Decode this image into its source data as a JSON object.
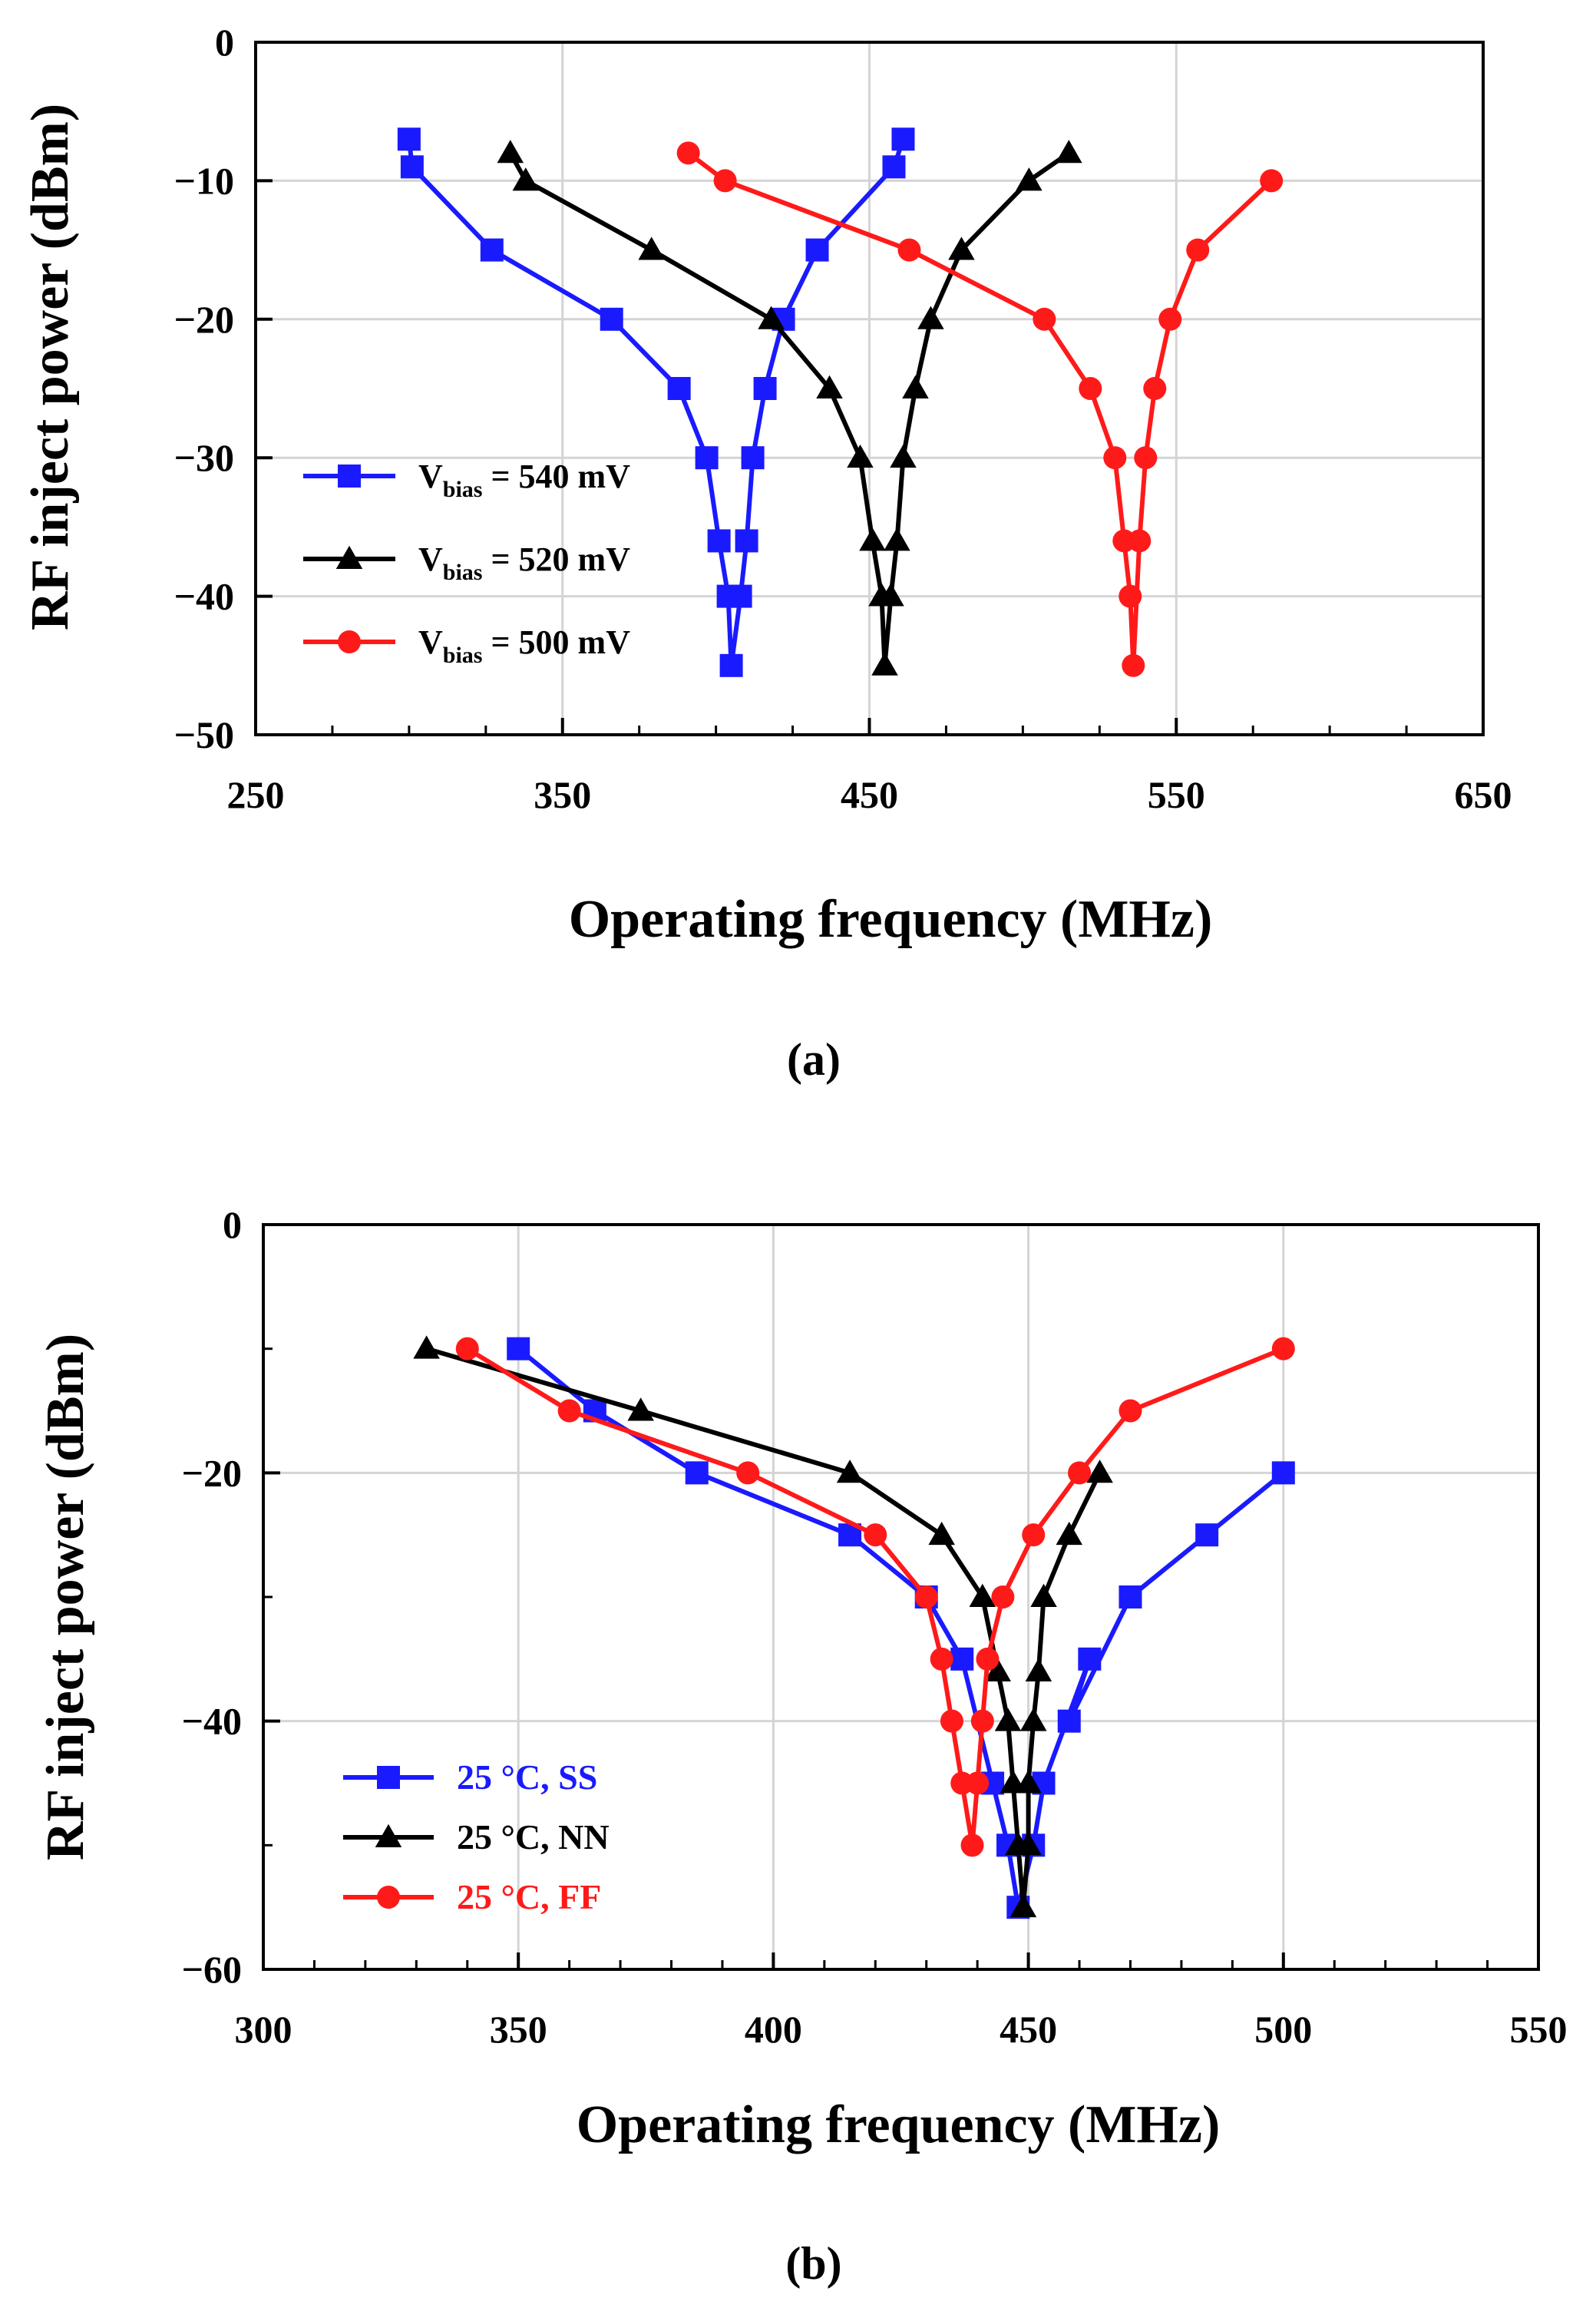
{
  "chart_data": [
    {
      "id": "a",
      "type": "line",
      "caption": "(a)",
      "xlabel": "Operating frequency (MHz)",
      "ylabel": "RF inject power (dBm)",
      "xlim": [
        250,
        650
      ],
      "ylim": [
        -50,
        0
      ],
      "xticks": [
        250,
        350,
        450,
        550,
        650
      ],
      "xticks_minor": [
        275,
        300,
        325,
        375,
        400,
        425,
        475,
        500,
        525,
        575,
        600,
        625
      ],
      "yticks": [
        0,
        -10,
        -20,
        -30,
        -40,
        -50
      ],
      "xgrid": [
        350,
        450,
        550
      ],
      "ygrid": [
        -10,
        -20,
        -30,
        -40
      ],
      "legend": "center-left",
      "series": [
        {
          "legend_main": "V",
          "legend_sub": "bias",
          "legend_rest": " = 540 mV",
          "color": "#1a1aff",
          "marker": "square",
          "points": [
            [
              300,
              -7
            ],
            [
              301,
              -9
            ],
            [
              327,
              -15
            ],
            [
              366,
              -20
            ],
            [
              388,
              -25
            ],
            [
              397,
              -30
            ],
            [
              401,
              -36
            ],
            [
              404,
              -40
            ],
            [
              405,
              -45
            ],
            [
              408,
              -40
            ],
            [
              410,
              -36
            ],
            [
              412,
              -30
            ],
            [
              416,
              -25
            ],
            [
              422,
              -20
            ],
            [
              433,
              -15
            ],
            [
              458,
              -9
            ],
            [
              461,
              -7
            ]
          ]
        },
        {
          "legend_main": "V",
          "legend_sub": "bias",
          "legend_rest": " = 520 mV",
          "color": "#000000",
          "marker": "triangle",
          "points": [
            [
              333,
              -8
            ],
            [
              338,
              -10
            ],
            [
              379,
              -15
            ],
            [
              418,
              -20
            ],
            [
              437,
              -25
            ],
            [
              447,
              -30
            ],
            [
              451,
              -36
            ],
            [
              454,
              -40
            ],
            [
              455,
              -45
            ],
            [
              457,
              -40
            ],
            [
              459,
              -36
            ],
            [
              461,
              -30
            ],
            [
              465,
              -25
            ],
            [
              470,
              -20
            ],
            [
              480,
              -15
            ],
            [
              502,
              -10
            ],
            [
              515,
              -8
            ]
          ]
        },
        {
          "legend_main": "V",
          "legend_sub": "bias",
          "legend_rest": " = 500 mV",
          "color": "#ff1a1a",
          "marker": "circle",
          "points": [
            [
              391,
              -8
            ],
            [
              403,
              -10
            ],
            [
              463,
              -15
            ],
            [
              507,
              -20
            ],
            [
              522,
              -25
            ],
            [
              530,
              -30
            ],
            [
              533,
              -36
            ],
            [
              535,
              -40
            ],
            [
              536,
              -45
            ],
            [
              538,
              -36
            ],
            [
              540,
              -30
            ],
            [
              543,
              -25
            ],
            [
              548,
              -20
            ],
            [
              557,
              -15
            ],
            [
              581,
              -10
            ]
          ]
        }
      ]
    },
    {
      "id": "b",
      "type": "line",
      "caption": "(b)",
      "xlabel": "Operating frequency (MHz)",
      "ylabel": "RF inject power (dBm)",
      "xlim": [
        300,
        550
      ],
      "ylim": [
        -60,
        0
      ],
      "xticks": [
        300,
        350,
        400,
        450,
        500,
        550
      ],
      "xticks_minor": [
        310,
        320,
        330,
        340,
        360,
        370,
        380,
        390,
        410,
        420,
        430,
        440,
        460,
        470,
        480,
        490,
        510,
        520,
        530,
        540
      ],
      "yticks": [
        0,
        -20,
        -40,
        -60
      ],
      "yticks_minor": [
        -10,
        -30,
        -50
      ],
      "xgrid": [
        350,
        400,
        450,
        500
      ],
      "ygrid": [
        -20,
        -40
      ],
      "legend": "bottom-left",
      "series": [
        {
          "legend_main": "25 °C, SS",
          "legend_sub": "",
          "legend_rest": "",
          "color": "#1a1aff",
          "marker": "square",
          "points": [
            [
              350,
              -10
            ],
            [
              365,
              -15
            ],
            [
              385,
              -20
            ],
            [
              415,
              -25
            ],
            [
              430,
              -30
            ],
            [
              437,
              -35
            ],
            [
              443,
              -45
            ],
            [
              446,
              -50
            ],
            [
              448,
              -55
            ],
            [
              451,
              -50
            ],
            [
              453,
              -45
            ],
            [
              462,
              -35
            ],
            [
              458,
              -40
            ],
            [
              470,
              -30
            ],
            [
              485,
              -25
            ],
            [
              500,
              -20
            ]
          ]
        },
        {
          "legend_main": "25 °C, NN",
          "legend_sub": "",
          "legend_rest": "",
          "color": "#000000",
          "marker": "triangle",
          "points": [
            [
              332,
              -10
            ],
            [
              374,
              -15
            ],
            [
              415,
              -20
            ],
            [
              433,
              -25
            ],
            [
              441,
              -30
            ],
            [
              444,
              -36
            ],
            [
              446,
              -40
            ],
            [
              447,
              -45
            ],
            [
              448,
              -50
            ],
            [
              449,
              -55
            ],
            [
              450,
              -50
            ],
            [
              450,
              -45
            ],
            [
              451,
              -40
            ],
            [
              452,
              -36
            ],
            [
              453,
              -30
            ],
            [
              458,
              -25
            ],
            [
              464,
              -20
            ]
          ]
        },
        {
          "legend_main": "25 °C, FF",
          "legend_sub": "",
          "legend_rest": "",
          "color": "#ff1a1a",
          "marker": "circle",
          "points": [
            [
              340,
              -10
            ],
            [
              360,
              -15
            ],
            [
              395,
              -20
            ],
            [
              420,
              -25
            ],
            [
              430,
              -30
            ],
            [
              433,
              -35
            ],
            [
              435,
              -40
            ],
            [
              437,
              -45
            ],
            [
              439,
              -50
            ],
            [
              440,
              -45
            ],
            [
              441,
              -40
            ],
            [
              442,
              -35
            ],
            [
              445,
              -30
            ],
            [
              451,
              -25
            ],
            [
              460,
              -20
            ],
            [
              470,
              -15
            ],
            [
              500,
              -10
            ]
          ]
        }
      ]
    }
  ]
}
